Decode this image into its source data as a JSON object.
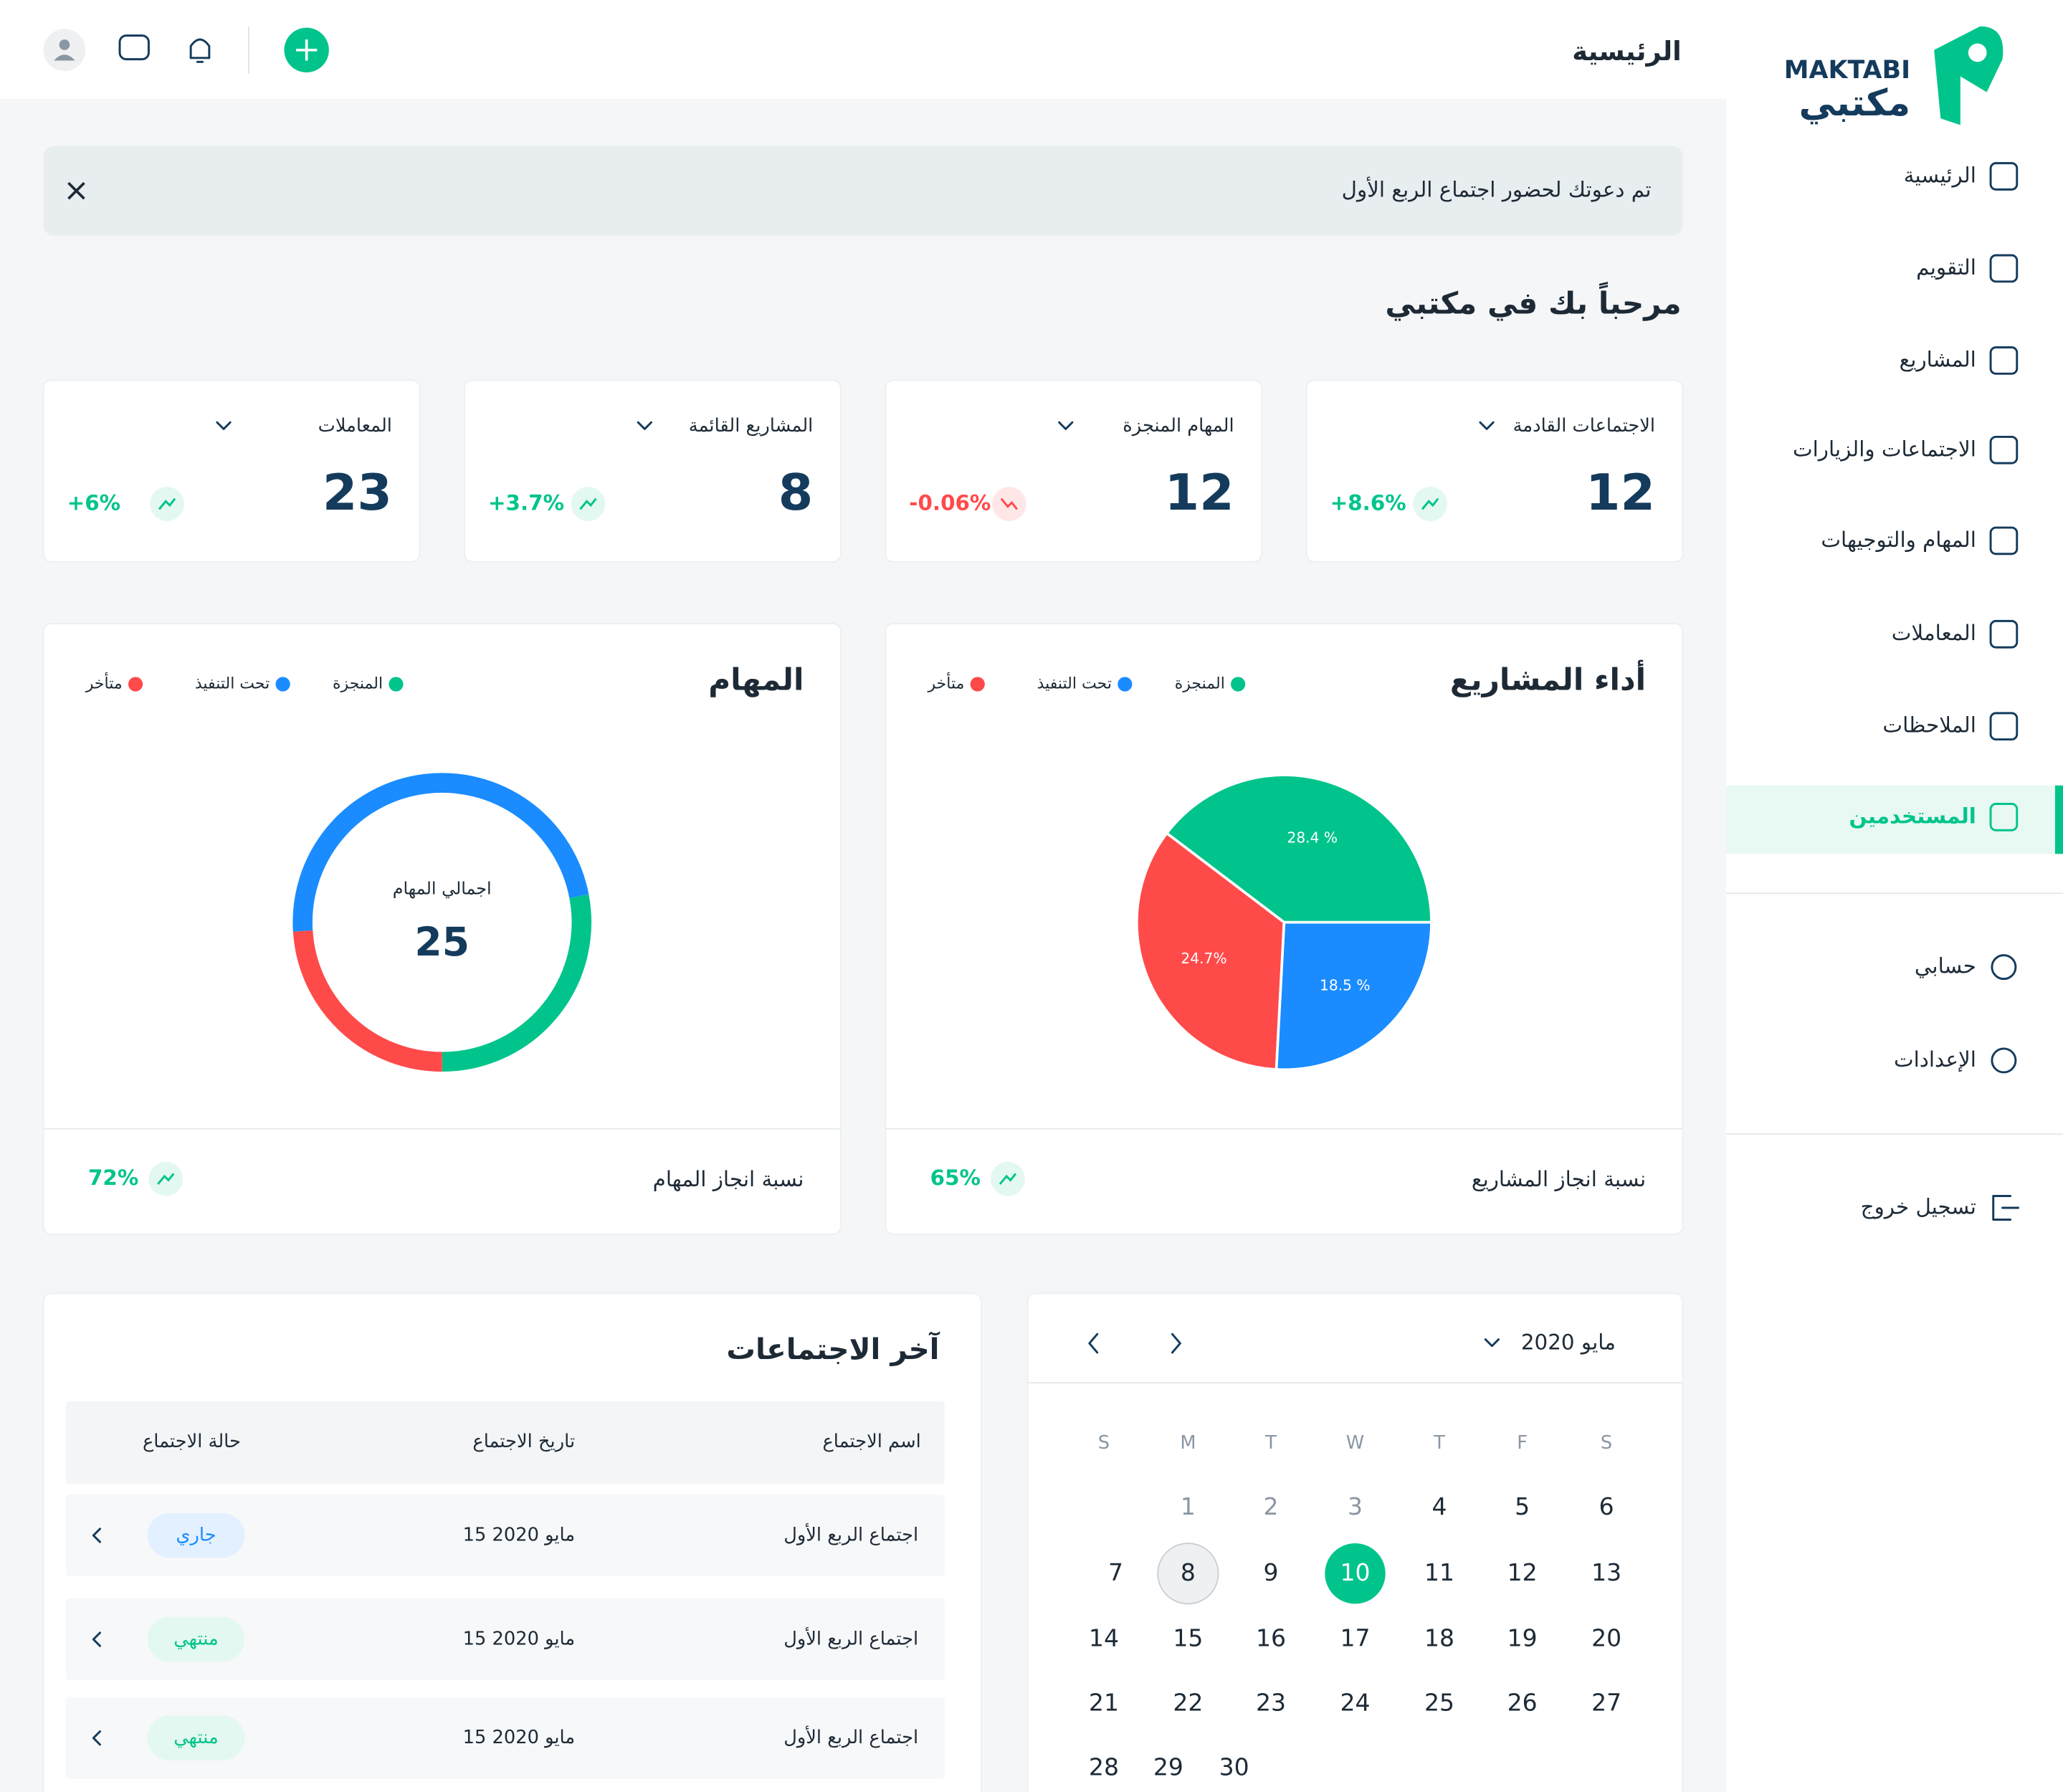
{
  "header": {
    "title": "الرئيسية"
  },
  "sidebar": {
    "logo_latin": "MAKTABI",
    "logo_arabic": "مكتبي",
    "nav": [
      "الرئيسية",
      "التقويم",
      "المشاريع",
      "الاجتماعات والزيارات",
      "المهام والتوجيهات",
      "المعاملات",
      "الملاحظات",
      "المستخدمين"
    ],
    "active": "المستخدمين",
    "account": [
      "حسابي",
      "الإعدادات"
    ],
    "logout": "تسجيل خروج"
  },
  "alert": {
    "text": "تم دعوتك لحضور اجتماع الربع الأول"
  },
  "welcome": "مرحباً بك في مكتبي",
  "stats": [
    {
      "label": "الاجتماعات القادمة",
      "value": "12",
      "change": "+8.6%",
      "trend": "up"
    },
    {
      "label": "المهام المنجزة",
      "value": "12",
      "change": "-0.06%",
      "trend": "down"
    },
    {
      "label": "المشاريع القائمة",
      "value": "8",
      "change": "+3.7%",
      "trend": "up"
    },
    {
      "label": "المعاملات",
      "value": "23",
      "change": "+6%",
      "trend": "up"
    }
  ],
  "charts": [
    {
      "type": "pie",
      "title": "أداء المشاريع",
      "series": [
        {
          "name": "المنجزة",
          "color": "#00c48c",
          "value": 28.4,
          "value_label": "28.4 %"
        },
        {
          "name": "متأخر",
          "color": "#ff4a4a",
          "value": 24.7,
          "value_label": "24.7%"
        },
        {
          "name": "تحت التنفيذ",
          "color": "#1a8cff",
          "value": 18.5,
          "value_label": "18.5 %"
        }
      ],
      "legend": [
        "المنجزة",
        "تحت التنفيذ",
        "متأخر"
      ],
      "footer_label": "نسبة انجاز المشاريع",
      "footer_value": "65%"
    },
    {
      "type": "donut",
      "title": "المهام",
      "center_label": "اجمالي المهام",
      "center_value": "25",
      "series": [
        {
          "name": "المنجزة",
          "color": "#00c48c",
          "value": 7
        },
        {
          "name": "تحت التنفيذ",
          "color": "#1a8cff",
          "value": 12
        },
        {
          "name": "متأخر",
          "color": "#ff4a4a",
          "value": 6
        }
      ],
      "legend": [
        "المنجزة",
        "تحت التنفيذ",
        "متأخر"
      ],
      "footer_label": "نسبة انجاز المهام",
      "footer_value": "72%"
    }
  ],
  "meetings": {
    "title": "آخر الاجتماعات",
    "columns": [
      "اسم الاجتماع",
      "تاريخ الاجتماع",
      "حالة الاجتماع"
    ],
    "rows": [
      [
        "اجتماع الربع الأول",
        "15 مايو 2020",
        "جاري"
      ],
      [
        "اجتماع الربع الأول",
        "15 مايو 2020",
        "منتهي"
      ],
      [
        "اجتماع الربع الأول",
        "15 مايو 2020",
        "منتهي"
      ]
    ]
  },
  "calendar": {
    "month": "مايو 2020",
    "weekdays": [
      "S",
      "M",
      "T",
      "W",
      "T",
      "F",
      "S"
    ],
    "days": [
      1,
      2,
      3,
      4,
      5,
      6,
      7,
      8,
      9,
      10,
      11,
      12,
      13,
      14,
      15,
      16,
      17,
      18,
      19,
      20,
      21,
      22,
      23,
      24,
      25,
      26,
      27,
      28,
      29,
      30
    ],
    "selected": 10,
    "highlighted": 8
  }
}
